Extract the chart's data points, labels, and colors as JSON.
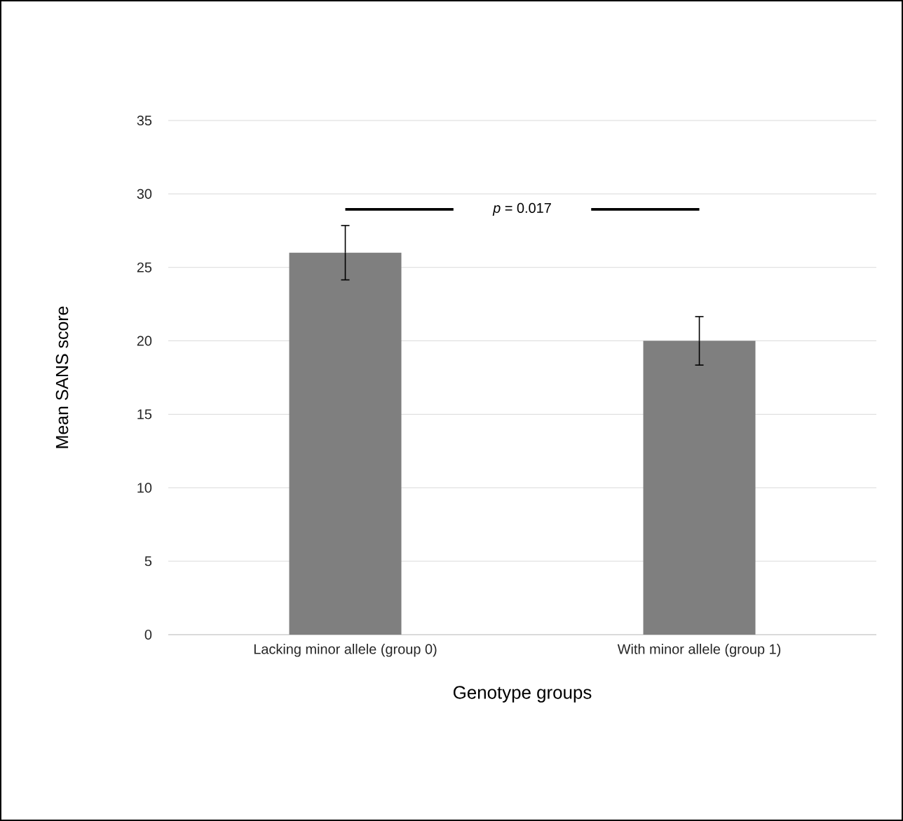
{
  "chart_data": {
    "type": "bar",
    "xlabel": "Genotype groups",
    "ylabel": "Mean SANS score",
    "categories": [
      "Lacking minor allele (group 0)",
      "With minor allele (group 1)"
    ],
    "values": [
      26,
      20
    ],
    "errors": [
      1.85,
      1.65
    ],
    "color": "#7f7f7f",
    "ylim": [
      0,
      35
    ],
    "yticks": [
      0,
      5,
      10,
      15,
      20,
      25,
      30,
      35
    ],
    "grid": "y",
    "annotations": [
      "*p* = 0.017"
    ]
  }
}
